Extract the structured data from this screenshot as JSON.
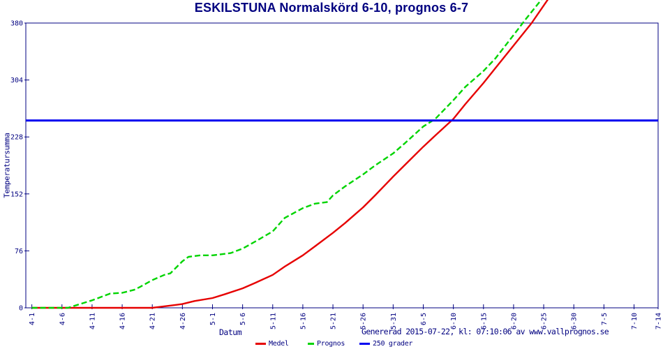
{
  "title": "ESKILSTUNA Normalskörd 6-10, prognos 6-7",
  "footer": "Genererad 2015-07-22, kl: 07:10:06 av www.vallprognos.se",
  "colors": {
    "frame_and_text": "#000080",
    "background": "#ffffff",
    "medel": "#e60000",
    "prognos": "#00d400",
    "grader_250": "#0000f0"
  },
  "chart_data": {
    "type": "line",
    "title": "ESKILSTUNA Normalskörd 6-10, prognos 6-7",
    "xlabel": "Datum",
    "ylabel": "Temperatursumma",
    "ylim": [
      0,
      380
    ],
    "y_ticks": [
      0,
      76,
      152,
      228,
      304,
      380
    ],
    "x_tick_labels": [
      "4-1",
      "4-6",
      "4-11",
      "4-16",
      "4-21",
      "4-26",
      "5-1",
      "5-6",
      "5-11",
      "5-16",
      "5-21",
      "5-26",
      "5-31",
      "6-5",
      "6-10",
      "6-15",
      "6-20",
      "6-25",
      "6-30",
      "7-5",
      "7-10",
      "7-14"
    ],
    "x_date_range": [
      "3-31",
      "7-14"
    ],
    "grid": "off",
    "legend_position": "bottom",
    "legend": [
      {
        "label": "Medel"
      },
      {
        "label": "Prognos"
      },
      {
        "label": "250 grader"
      }
    ],
    "series": [
      {
        "name": "Medel",
        "color": "#e60000",
        "dash": "solid",
        "width": 2.4,
        "points": [
          [
            "4-1",
            0
          ],
          [
            "4-21",
            0
          ],
          [
            "4-22",
            1
          ],
          [
            "4-24",
            3
          ],
          [
            "4-26",
            5
          ],
          [
            "4-28",
            9
          ],
          [
            "5-1",
            13
          ],
          [
            "5-3",
            18
          ],
          [
            "5-6",
            26
          ],
          [
            "5-8",
            33
          ],
          [
            "5-11",
            44
          ],
          [
            "5-13",
            55
          ],
          [
            "5-16",
            70
          ],
          [
            "5-18",
            82
          ],
          [
            "5-21",
            100
          ],
          [
            "5-23",
            113
          ],
          [
            "5-26",
            134
          ],
          [
            "5-28",
            150
          ],
          [
            "5-31",
            175
          ],
          [
            "6-2",
            191
          ],
          [
            "6-5",
            215
          ],
          [
            "6-7",
            230
          ],
          [
            "6-10",
            252
          ],
          [
            "6-12",
            272
          ],
          [
            "6-15",
            300
          ],
          [
            "6-17",
            320
          ],
          [
            "6-20",
            350
          ],
          [
            "6-23",
            380
          ],
          [
            "6-26",
            415
          ]
        ]
      },
      {
        "name": "Prognos",
        "color": "#00d400",
        "dash": "dashed",
        "width": 2.4,
        "points": [
          [
            "4-1",
            0
          ],
          [
            "4-7",
            0
          ],
          [
            "4-9",
            5
          ],
          [
            "4-11",
            10
          ],
          [
            "4-13",
            16
          ],
          [
            "4-14",
            19
          ],
          [
            "4-16",
            20
          ],
          [
            "4-18",
            24
          ],
          [
            "4-19",
            28
          ],
          [
            "4-21",
            37
          ],
          [
            "4-23",
            44
          ],
          [
            "4-24",
            46
          ],
          [
            "4-26",
            62
          ],
          [
            "4-27",
            68
          ],
          [
            "4-29",
            70
          ],
          [
            "5-1",
            70
          ],
          [
            "5-4",
            73
          ],
          [
            "5-6",
            79
          ],
          [
            "5-8",
            88
          ],
          [
            "5-11",
            102
          ],
          [
            "5-13",
            120
          ],
          [
            "5-16",
            133
          ],
          [
            "5-18",
            139
          ],
          [
            "5-20",
            141
          ],
          [
            "5-21",
            150
          ],
          [
            "5-23",
            162
          ],
          [
            "5-26",
            178
          ],
          [
            "5-28",
            190
          ],
          [
            "5-31",
            206
          ],
          [
            "6-2",
            220
          ],
          [
            "6-5",
            242
          ],
          [
            "6-7",
            252
          ],
          [
            "6-10",
            277
          ],
          [
            "6-12",
            295
          ],
          [
            "6-15",
            316
          ],
          [
            "6-17",
            333
          ],
          [
            "6-20",
            364
          ],
          [
            "6-22",
            385
          ],
          [
            "6-25",
            415
          ]
        ]
      },
      {
        "name": "250 grader",
        "color": "#0000f0",
        "dash": "solid",
        "width": 3,
        "points": [
          [
            "3-31",
            250
          ],
          [
            "7-14",
            250
          ]
        ]
      }
    ]
  }
}
